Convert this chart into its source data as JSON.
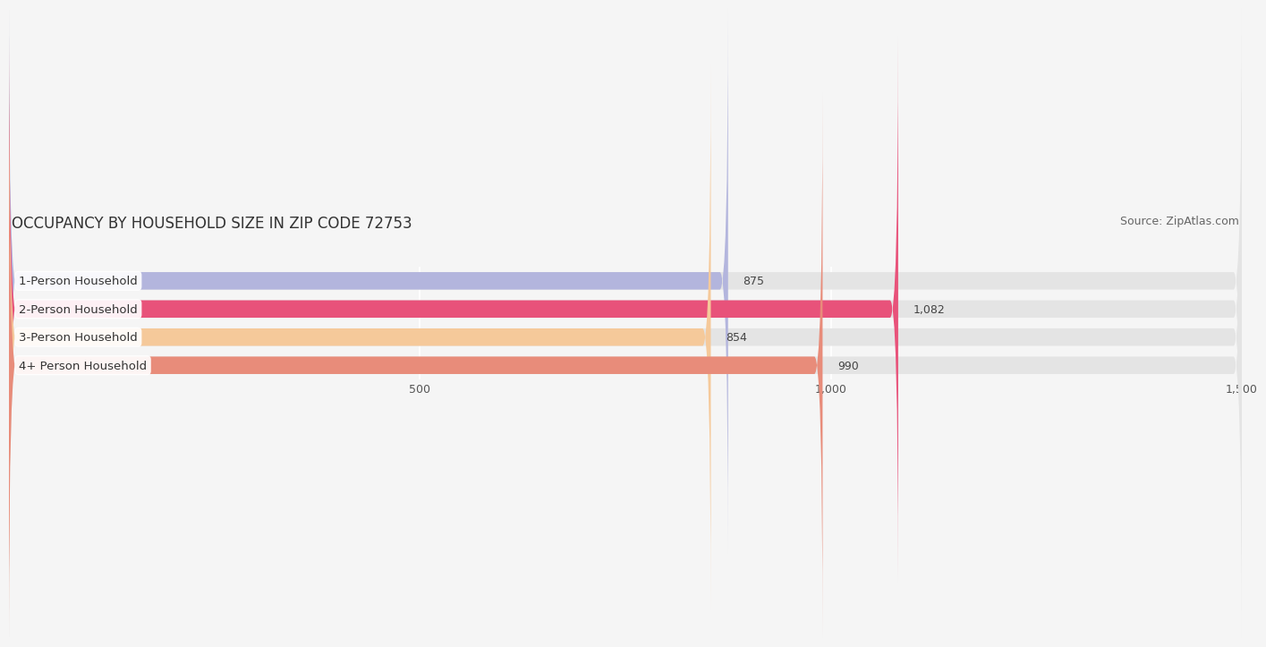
{
  "title": "OCCUPANCY BY HOUSEHOLD SIZE IN ZIP CODE 72753",
  "source": "Source: ZipAtlas.com",
  "categories": [
    "1-Person Household",
    "2-Person Household",
    "3-Person Household",
    "4+ Person Household"
  ],
  "values": [
    875,
    1082,
    854,
    990
  ],
  "bar_colors": [
    "#b3b5dd",
    "#e8527a",
    "#f5c99a",
    "#e88c7a"
  ],
  "background_color": "#f5f5f5",
  "bar_background_color": "#e4e4e4",
  "xlim": [
    0,
    1500
  ],
  "xticks": [
    500,
    1000,
    1500
  ],
  "bar_height": 0.62,
  "title_fontsize": 12,
  "source_fontsize": 9,
  "label_fontsize": 9.5,
  "value_fontsize": 9,
  "tick_fontsize": 9
}
